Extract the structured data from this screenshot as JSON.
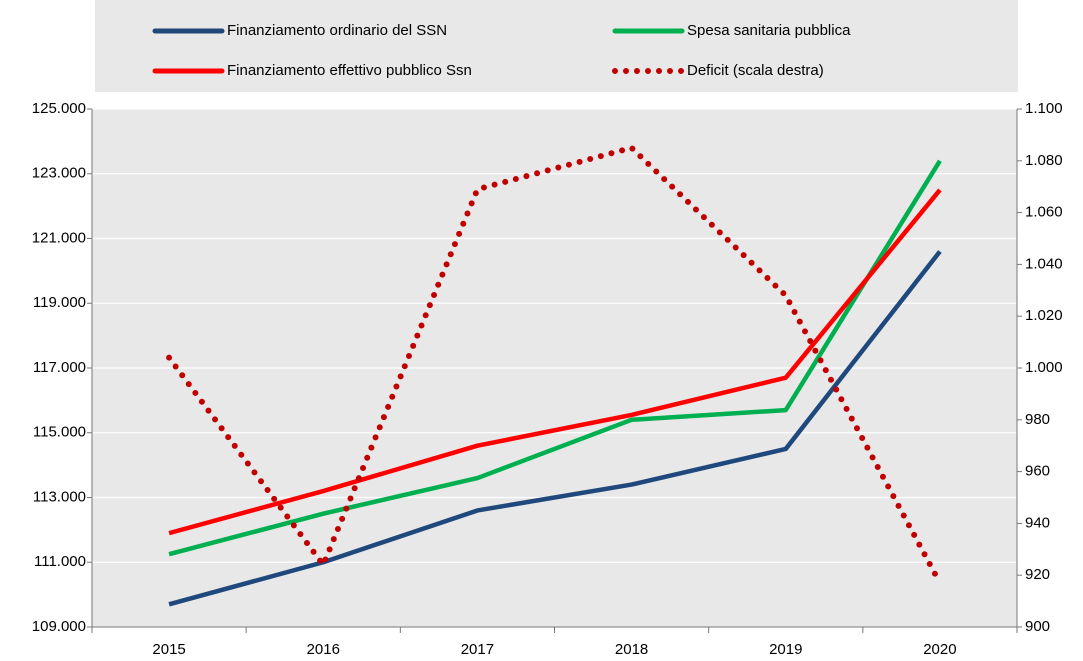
{
  "chart_data": {
    "type": "line",
    "categories": [
      "2015",
      "2016",
      "2017",
      "2018",
      "2019",
      "2020"
    ],
    "series": [
      {
        "name": "Finanziamento ordinario del SSN",
        "color": "#1f497d",
        "values": [
          109700,
          111000,
          112600,
          113400,
          114500,
          120600
        ]
      },
      {
        "name": "Spesa sanitaria pubblica",
        "color": "#00b050",
        "values": [
          111250,
          112500,
          113600,
          115400,
          115700,
          123400
        ]
      },
      {
        "name": "Finanziamento effettivo pubblico Ssn",
        "color": "#ff0000",
        "values": [
          111900,
          113200,
          114600,
          115550,
          116700,
          122500
        ]
      },
      {
        "name": "Deficit (scala destra)",
        "color": "#c00000",
        "dashed": true,
        "axis": "y2",
        "values": [
          1004,
          924,
          1069,
          1085,
          1028,
          917
        ]
      }
    ],
    "ylim": [
      109000,
      125000
    ],
    "yticks": [
      {
        "value": 109000,
        "label": "109.000"
      },
      {
        "value": 111000,
        "label": "111.000"
      },
      {
        "value": 113000,
        "label": "113.000"
      },
      {
        "value": 115000,
        "label": "115.000"
      },
      {
        "value": 117000,
        "label": "117.000"
      },
      {
        "value": 119000,
        "label": "119.000"
      },
      {
        "value": 121000,
        "label": "121.000"
      },
      {
        "value": 123000,
        "label": "123.000"
      },
      {
        "value": 125000,
        "label": "125.000"
      }
    ],
    "y2lim": [
      900,
      1100
    ],
    "y2ticks": [
      900,
      920,
      940,
      960,
      980,
      {
        "value": 1000,
        "label": "1.000"
      },
      {
        "value": 1020,
        "label": "1.020"
      },
      {
        "value": 1040,
        "label": "1.040"
      },
      {
        "value": 1060,
        "label": "1.060"
      },
      {
        "value": 1080,
        "label": "1.080"
      },
      {
        "value": 1100,
        "label": "1.100"
      }
    ],
    "grid": true
  }
}
